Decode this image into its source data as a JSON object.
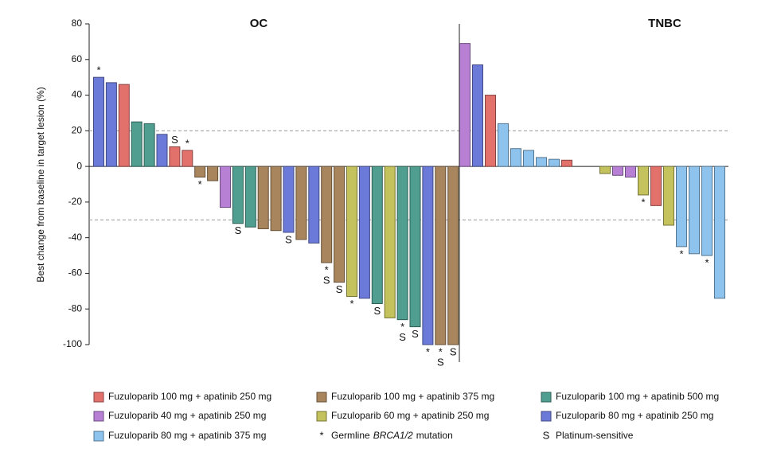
{
  "chart_data": {
    "type": "waterfall",
    "ylabel": "Best change from baseline in target lesion (%)",
    "ylim": [
      -100,
      80
    ],
    "yticks": [
      -100,
      -80,
      -60,
      -40,
      -20,
      0,
      20,
      40,
      60,
      80
    ],
    "reference_lines": [
      20,
      -30
    ],
    "series": [
      {
        "name": "Fuzuloparib 100 mg + apatinib 250 mg",
        "color": "#e2706b"
      },
      {
        "name": "Fuzuloparib 100 mg + apatinib 375 mg",
        "color": "#a8855c"
      },
      {
        "name": "Fuzuloparib 100 mg + apatinib 500 mg",
        "color": "#4f9e90"
      },
      {
        "name": "Fuzuloparib 40 mg + apatinib 250 mg",
        "color": "#b780d4"
      },
      {
        "name": "Fuzuloparib 60 mg + apatinib 250 mg",
        "color": "#c3c25c"
      },
      {
        "name": "Fuzuloparib 80 mg + apatinib 250 mg",
        "color": "#6b7ad8"
      },
      {
        "name": "Fuzuloparib 80 mg + apatinib 375 mg",
        "color": "#8ec3ee"
      }
    ],
    "notes": [
      {
        "symbol": "*",
        "label": [
          "Germline",
          "BRCA1/2",
          "mutation"
        ]
      },
      {
        "symbol": "S",
        "label": [
          "Platinum-sensitive"
        ]
      }
    ],
    "panels": [
      {
        "title": "OC",
        "groups": [
          5,
          5,
          0,
          2,
          2,
          5,
          0,
          0,
          1,
          1,
          3,
          2,
          2,
          1,
          1,
          5,
          1,
          5,
          1,
          1,
          4,
          5,
          2,
          4,
          2,
          2,
          5,
          1,
          1
        ],
        "values": [
          50,
          47,
          46,
          25,
          24,
          18,
          11,
          9,
          -6,
          -8,
          -23,
          -32,
          -34,
          -35,
          -36,
          -37,
          -41,
          -43,
          -54,
          -65,
          -73,
          -74,
          -77,
          -85,
          -86,
          -90,
          -100,
          -100,
          -100
        ],
        "annotations": [
          {
            "index": 0,
            "symbols": [
              "*"
            ]
          },
          {
            "index": 6,
            "symbols": [
              "S"
            ]
          },
          {
            "index": 7,
            "symbols": [
              "*"
            ]
          },
          {
            "index": 8,
            "symbols": [
              "*"
            ]
          },
          {
            "index": 11,
            "symbols": [
              "S"
            ]
          },
          {
            "index": 15,
            "symbols": [
              "S"
            ]
          },
          {
            "index": 18,
            "symbols": [
              "*",
              "S"
            ]
          },
          {
            "index": 19,
            "symbols": [
              "S"
            ]
          },
          {
            "index": 20,
            "symbols": [
              "*"
            ]
          },
          {
            "index": 22,
            "symbols": [
              "S"
            ]
          },
          {
            "index": 24,
            "symbols": [
              "*",
              "S"
            ]
          },
          {
            "index": 25,
            "symbols": [
              "S"
            ]
          },
          {
            "index": 26,
            "symbols": [
              "*"
            ]
          },
          {
            "index": 27,
            "symbols": [
              "*",
              "S"
            ]
          },
          {
            "index": 28,
            "symbols": [
              "S"
            ]
          }
        ]
      },
      {
        "title": "TNBC",
        "groups": [
          3,
          5,
          0,
          6,
          6,
          6,
          6,
          6,
          0,
          null,
          null,
          4,
          3,
          3,
          4,
          0,
          4,
          6,
          6,
          6,
          6
        ],
        "values": [
          69,
          57,
          40,
          24,
          10,
          9,
          5,
          4,
          3.5,
          null,
          null,
          -4,
          -5,
          -6,
          -16,
          -22,
          -33,
          -45,
          -49,
          -50,
          -74
        ],
        "annotations": [
          {
            "index": 14,
            "symbols": [
              "*"
            ]
          },
          {
            "index": 17,
            "symbols": [
              "*"
            ]
          },
          {
            "index": 19,
            "symbols": [
              "*"
            ]
          }
        ]
      }
    ]
  }
}
